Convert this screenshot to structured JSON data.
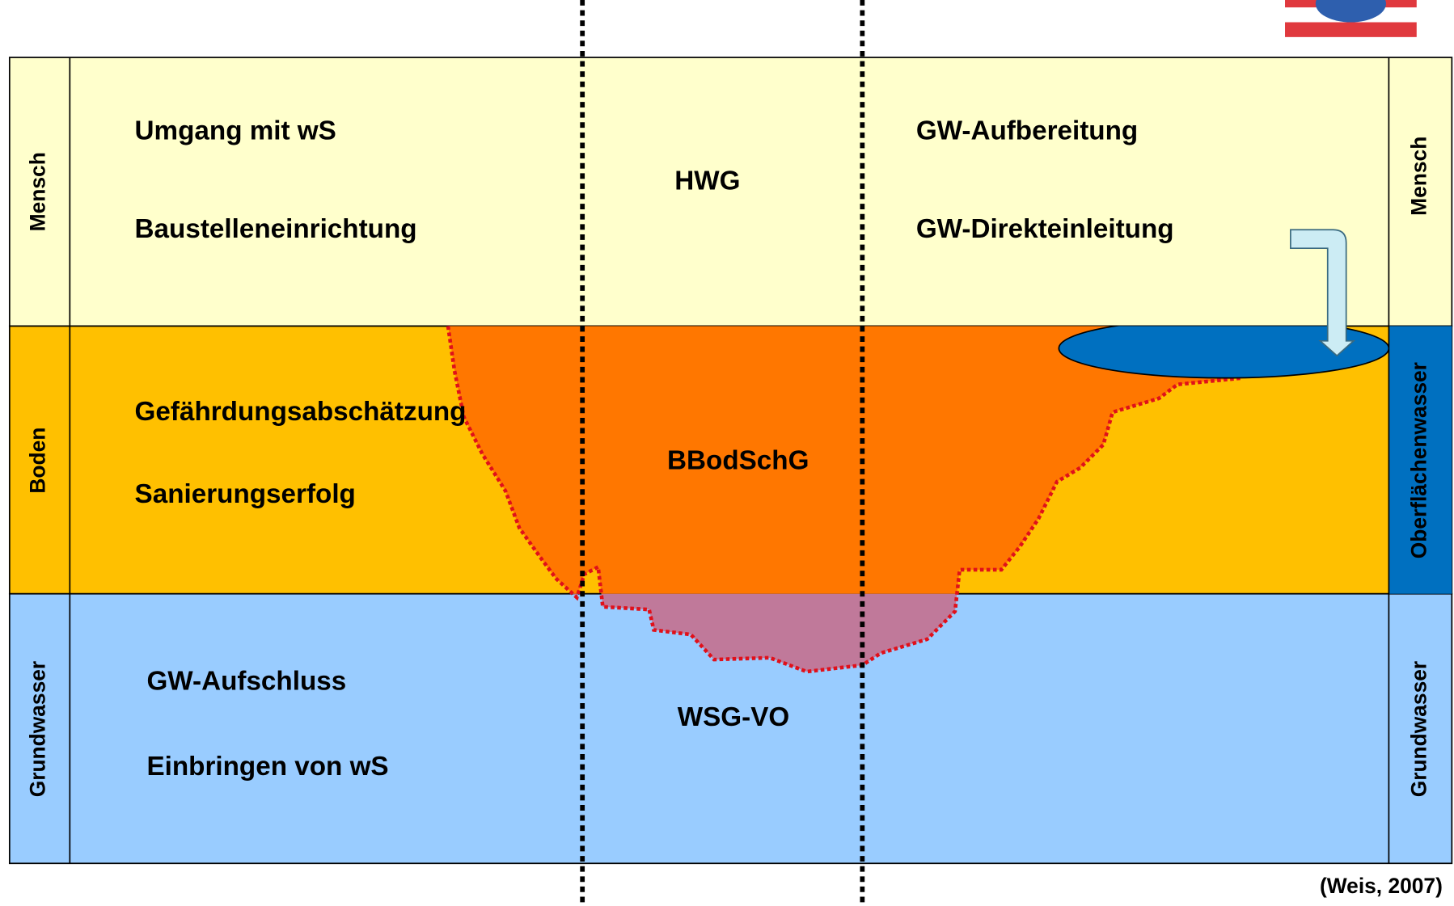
{
  "rows": [
    {
      "left_label": "Mensch",
      "right_label": "Mensch",
      "left_items": [
        "Umgang mit wS",
        "Baustelleneinrichtung"
      ],
      "center": "HWG",
      "right_items": [
        "GW-Aufbereitung",
        "GW-Direkteinleitung"
      ]
    },
    {
      "left_label": "Boden",
      "right_label": "Oberflächenwasser",
      "left_items": [
        "Gefährdungsabschätzung",
        "Sanierungserfolg"
      ],
      "center": "BBodSchG"
    },
    {
      "left_label": "Grundwasser",
      "right_label": "Grundwasser",
      "left_items": [
        "GW-Aufschluss",
        "Einbringen von wS"
      ],
      "center": "WSG-VO"
    }
  ],
  "citation": "(Weis, 2007)"
}
